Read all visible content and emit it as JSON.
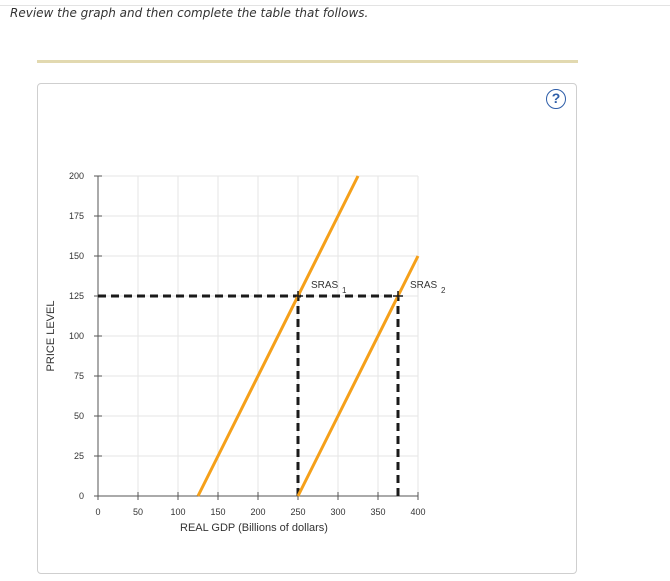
{
  "instruction": "Review the graph and then complete the table that follows.",
  "help": {
    "label": "?"
  },
  "chart_data": {
    "type": "line",
    "xlabel": "REAL GDP (Billions of dollars)",
    "ylabel": "PRICE LEVEL",
    "xlim": [
      0,
      400
    ],
    "ylim": [
      0,
      200
    ],
    "xticks": [
      0,
      50,
      100,
      150,
      200,
      250,
      300,
      350,
      400
    ],
    "yticks": [
      0,
      25,
      50,
      75,
      100,
      125,
      150,
      175,
      200
    ],
    "grid": true,
    "series": [
      {
        "name": "SRAS",
        "subscript": "1",
        "color": "#f5a01a",
        "points": [
          [
            125,
            0
          ],
          [
            325,
            200
          ]
        ]
      },
      {
        "name": "SRAS",
        "subscript": "2",
        "color": "#f5a01a",
        "points": [
          [
            250,
            0
          ],
          [
            400,
            150
          ]
        ]
      }
    ],
    "reference_lines": [
      {
        "style": "dashed",
        "points": [
          [
            0,
            125
          ],
          [
            375,
            125
          ]
        ]
      },
      {
        "style": "dashed",
        "points": [
          [
            250,
            0
          ],
          [
            250,
            125
          ]
        ]
      },
      {
        "style": "dashed",
        "points": [
          [
            375,
            0
          ],
          [
            375,
            125
          ]
        ]
      }
    ]
  }
}
